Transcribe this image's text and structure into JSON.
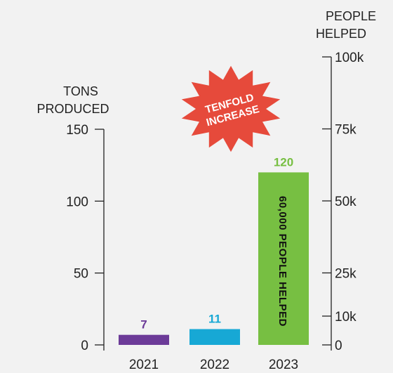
{
  "chart_data": {
    "type": "bar",
    "categories": [
      "2021",
      "2022",
      "2023"
    ],
    "values": [
      7,
      11,
      120
    ],
    "value_labels": [
      "7",
      "11",
      "120"
    ],
    "colors": [
      "#6c3b98",
      "#17a8d5",
      "#77bf42"
    ],
    "left_axis": {
      "title_lines": [
        "TONS",
        "PRODUCED"
      ],
      "range": [
        0,
        150
      ],
      "ticks": [
        0,
        50,
        100,
        150
      ]
    },
    "right_axis": {
      "title_lines": [
        "PEOPLE",
        "HELPED"
      ],
      "range": [
        0,
        100000
      ],
      "ticks": [
        {
          "value": 0,
          "label": "0"
        },
        {
          "value": 10000,
          "label": "10k"
        },
        {
          "value": 25000,
          "label": "25k"
        },
        {
          "value": 50000,
          "label": "50k"
        },
        {
          "value": 75000,
          "label": "75k"
        },
        {
          "value": 100000,
          "label": "100k"
        }
      ]
    },
    "bar_annotation": {
      "category": "2023",
      "text": "60,000 PEOPLE HELPED"
    },
    "callout": {
      "lines": [
        "TENFOLD",
        "INCREASE"
      ],
      "color": "#e64a3b"
    },
    "grid": false
  }
}
